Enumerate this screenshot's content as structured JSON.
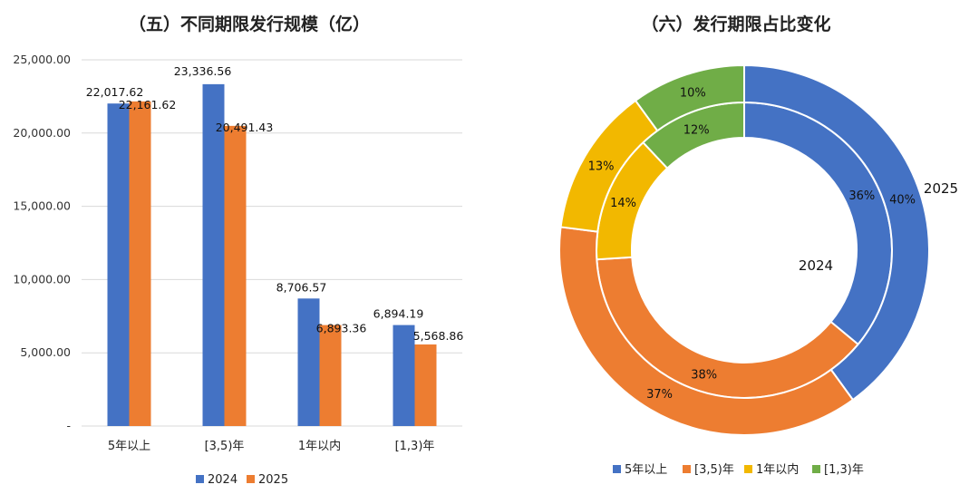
{
  "chart_data": [
    {
      "type": "bar",
      "title": "（五）不同期限发行规模（亿）",
      "categories": [
        "5年以上",
        "[3,5)年",
        "1年以内",
        "[1,3)年"
      ],
      "series": [
        {
          "name": "2024",
          "values": [
            22017.62,
            23336.56,
            8706.57,
            6894.19
          ],
          "labels": [
            "22,017.62",
            "23,336.56",
            "8,706.57",
            "6,894.19"
          ]
        },
        {
          "name": "2025",
          "values": [
            22161.62,
            20491.43,
            6893.36,
            5568.86
          ],
          "labels": [
            "22,161.62",
            "20,491.43",
            "6,893.36",
            "5,568.86"
          ]
        }
      ],
      "ylim": [
        0,
        25000
      ],
      "yticks": [
        {
          "value": 0,
          "label": "-"
        },
        {
          "value": 5000,
          "label": "5,000.00"
        },
        {
          "value": 10000,
          "label": "10,000.00"
        },
        {
          "value": 15000,
          "label": "15,000.00"
        },
        {
          "value": 20000,
          "label": "20,000.00"
        },
        {
          "value": 25000,
          "label": "25,000.00"
        }
      ],
      "grid": true,
      "legend_position": "bottom"
    },
    {
      "type": "pie",
      "title": "（六）发行期限占比变化",
      "categories": [
        "5年以上",
        "[3,5)年",
        "1年以内",
        "[1,3)年"
      ],
      "series": [
        {
          "name": "2024",
          "values": [
            36,
            38,
            14,
            12
          ],
          "labels": [
            "36%",
            "38%",
            "14%",
            "12%"
          ]
        },
        {
          "name": "2025",
          "values": [
            40,
            37,
            13,
            10
          ],
          "labels": [
            "40%",
            "37%",
            "13%",
            "10%"
          ]
        }
      ],
      "legend_position": "bottom"
    }
  ],
  "colors": {
    "blue": "#4472C4",
    "orange": "#ED7D31",
    "yellow": "#F2B800",
    "green": "#70AD47",
    "grid": "#d9d9d9"
  }
}
